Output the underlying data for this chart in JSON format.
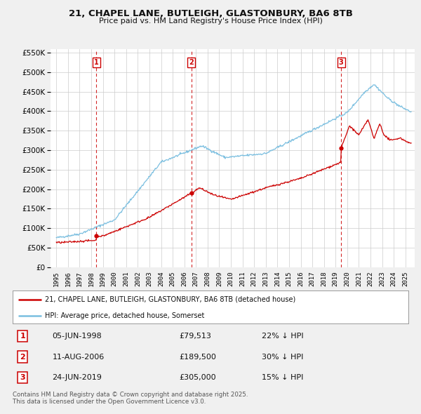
{
  "title_line1": "21, CHAPEL LANE, BUTLEIGH, GLASTONBURY, BA6 8TB",
  "title_line2": "Price paid vs. HM Land Registry's House Price Index (HPI)",
  "legend_label1": "21, CHAPEL LANE, BUTLEIGH, GLASTONBURY, BA6 8TB (detached house)",
  "legend_label2": "HPI: Average price, detached house, Somerset",
  "property_color": "#cc0000",
  "hpi_color": "#7bbfe0",
  "background_color": "#f0f0f0",
  "plot_bg_color": "#ffffff",
  "grid_color": "#cccccc",
  "sale_points": [
    {
      "label": "1",
      "date_num": 1998.43,
      "price": 79513
    },
    {
      "label": "2",
      "date_num": 2006.61,
      "price": 189500
    },
    {
      "label": "3",
      "date_num": 2019.48,
      "price": 305000
    }
  ],
  "sale_labels": [
    {
      "num": "1",
      "date": "05-JUN-1998",
      "price": "£79,513",
      "pct": "22% ↓ HPI"
    },
    {
      "num": "2",
      "date": "11-AUG-2006",
      "price": "£189,500",
      "pct": "30% ↓ HPI"
    },
    {
      "num": "3",
      "date": "24-JUN-2019",
      "price": "£305,000",
      "pct": "15% ↓ HPI"
    }
  ],
  "footer": "Contains HM Land Registry data © Crown copyright and database right 2025.\nThis data is licensed under the Open Government Licence v3.0.",
  "ylim": [
    0,
    560000
  ],
  "yticks": [
    0,
    50000,
    100000,
    150000,
    200000,
    250000,
    300000,
    350000,
    400000,
    450000,
    500000,
    550000
  ],
  "xlim_start": 1994.5,
  "xlim_end": 2025.8,
  "xticks": [
    1995,
    1996,
    1997,
    1998,
    1999,
    2000,
    2001,
    2002,
    2003,
    2004,
    2005,
    2006,
    2007,
    2008,
    2009,
    2010,
    2011,
    2012,
    2013,
    2014,
    2015,
    2016,
    2017,
    2018,
    2019,
    2020,
    2021,
    2022,
    2023,
    2024,
    2025
  ]
}
